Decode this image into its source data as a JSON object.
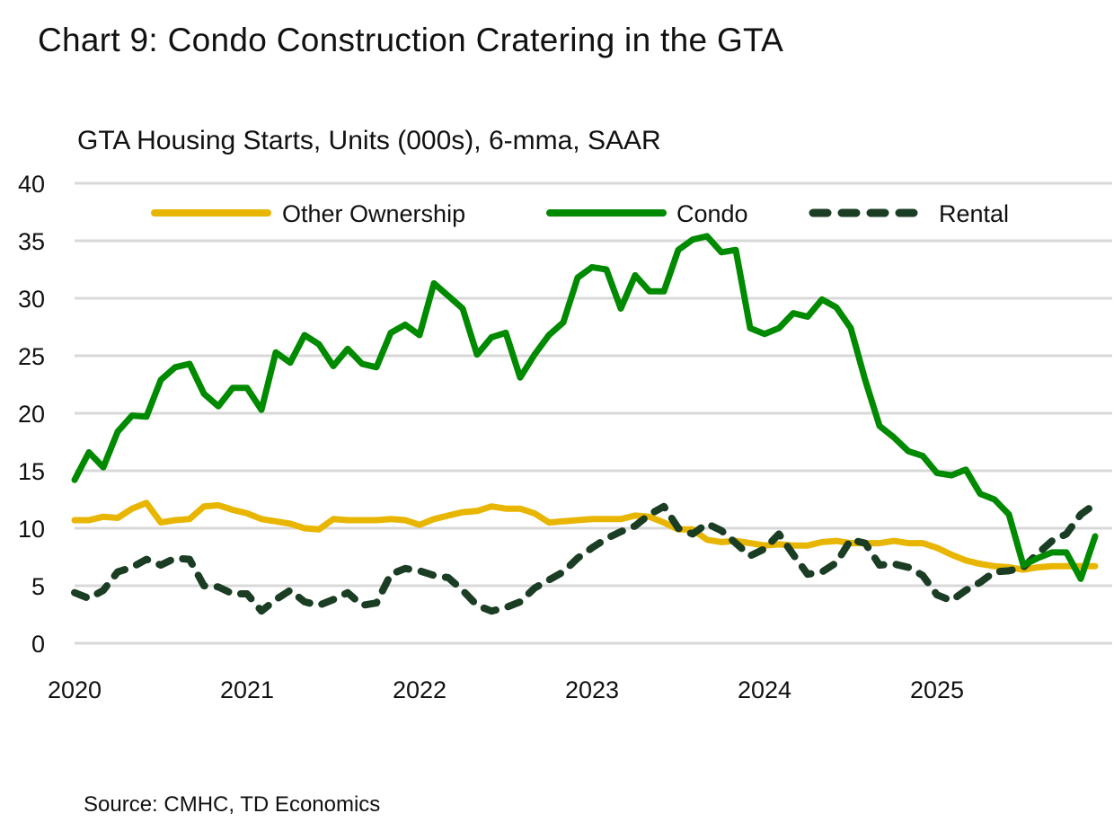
{
  "header": {
    "title": "Chart 9: Condo Construction Cratering in the GTA",
    "subtitle": "GTA Housing Starts, Units (000s), 6-mma, SAAR"
  },
  "footer": {
    "source": "Source: CMHC, TD Economics"
  },
  "colors": {
    "other_ownership": "#E8B500",
    "condo": "#008A00",
    "rental": "#1A3D24",
    "grid": "#D9D9D9"
  },
  "legend": [
    {
      "label": "Other Ownership",
      "style": "solid",
      "color": "#E8B500"
    },
    {
      "label": "Condo",
      "style": "solid",
      "color": "#008A00"
    },
    {
      "label": "Rental",
      "style": "dashed",
      "color": "#1A3D24"
    }
  ],
  "chart_data": {
    "type": "line",
    "title": "Chart 9: Condo Construction Cratering in the GTA",
    "subtitle": "GTA Housing Starts, Units (000s), 6-mma, SAAR",
    "xlabel": "",
    "ylabel": "Units (000s)",
    "ylim": [
      0,
      40
    ],
    "yticks": [
      0,
      5,
      10,
      15,
      20,
      25,
      30,
      35,
      40
    ],
    "xtick_labels": [
      "2020",
      "2021",
      "2022",
      "2023",
      "2024",
      "2025"
    ],
    "x_start": "2020-01",
    "x_end": "2025-12",
    "frequency": "monthly",
    "grid": true,
    "legend_position": "top-inside",
    "series": [
      {
        "name": "Other Ownership",
        "values": [
          10.7,
          10.7,
          11.0,
          10.9,
          11.7,
          12.2,
          10.5,
          10.7,
          10.8,
          11.9,
          12.0,
          11.6,
          11.3,
          10.8,
          10.6,
          10.4,
          10.0,
          9.9,
          10.8,
          10.7,
          10.7,
          10.7,
          10.8,
          10.7,
          10.3,
          10.8,
          11.1,
          11.4,
          11.5,
          11.9,
          11.7,
          11.7,
          11.3,
          10.5,
          10.6,
          10.7,
          10.8,
          10.8,
          10.8,
          11.1,
          11.0,
          10.5,
          9.9,
          9.9,
          9.0,
          8.8,
          8.9,
          8.7,
          8.5,
          8.6,
          8.5,
          8.5,
          8.8,
          8.9,
          8.7,
          8.7,
          8.7,
          8.9,
          8.7,
          8.7,
          8.3,
          7.7,
          7.2,
          6.9,
          6.7,
          6.6,
          6.4,
          6.6,
          6.7,
          6.7,
          6.7,
          6.7
        ]
      },
      {
        "name": "Condo",
        "values": [
          14.2,
          16.6,
          15.3,
          18.4,
          19.8,
          19.7,
          22.9,
          24.0,
          24.3,
          21.7,
          20.6,
          22.2,
          22.2,
          20.3,
          25.3,
          24.4,
          26.8,
          26.0,
          24.1,
          25.6,
          24.3,
          24.0,
          27.0,
          27.7,
          26.8,
          31.3,
          30.2,
          29.1,
          25.1,
          26.6,
          27.0,
          23.1,
          25.1,
          26.8,
          27.9,
          31.8,
          32.7,
          32.5,
          29.1,
          32.0,
          30.6,
          30.6,
          34.2,
          35.1,
          35.4,
          34.0,
          34.2,
          27.4,
          26.9,
          27.4,
          28.7,
          28.4,
          29.9,
          29.2,
          27.4,
          22.9,
          18.9,
          17.9,
          16.7,
          16.3,
          14.8,
          14.6,
          15.1,
          13.0,
          12.5,
          11.2,
          6.8,
          7.4,
          7.9,
          7.9,
          5.6,
          9.3
        ]
      },
      {
        "name": "Rental",
        "values": [
          4.4,
          3.9,
          4.6,
          6.2,
          6.6,
          7.3,
          6.8,
          7.4,
          7.3,
          5.0,
          4.9,
          4.3,
          4.3,
          2.8,
          3.8,
          4.6,
          3.6,
          3.3,
          3.8,
          4.4,
          3.3,
          3.5,
          6.0,
          6.5,
          6.3,
          5.9,
          5.7,
          4.6,
          3.3,
          2.8,
          3.1,
          3.6,
          4.8,
          5.5,
          6.2,
          7.4,
          8.3,
          9.1,
          9.7,
          10.2,
          11.2,
          11.9,
          10.0,
          9.5,
          10.4,
          9.8,
          8.7,
          7.6,
          8.2,
          9.5,
          7.7,
          6.0,
          6.2,
          7.0,
          9.0,
          8.7,
          6.8,
          6.9,
          6.6,
          5.9,
          4.2,
          3.7,
          4.6,
          5.3,
          6.2,
          6.3,
          6.6,
          7.8,
          8.9,
          9.5,
          11.2,
          12.1
        ]
      }
    ]
  }
}
